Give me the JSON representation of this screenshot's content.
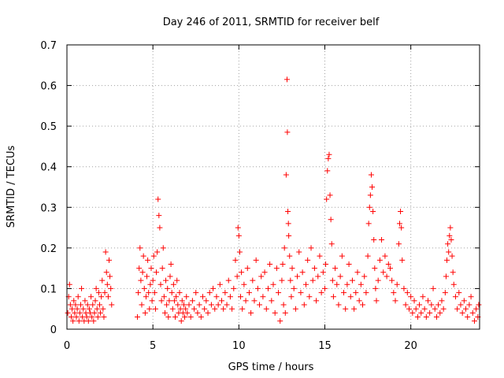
{
  "chart_data": {
    "type": "scatter",
    "title": "Day 246 of 2011, SRMTID for receiver belf",
    "xlabel": "GPS time / hours",
    "ylabel": "SRMTID / TECUs",
    "xlim": [
      0,
      24
    ],
    "ylim": [
      0,
      0.7
    ],
    "xticks": [
      0,
      5,
      10,
      15,
      20
    ],
    "xtick_labels": [
      "0",
      "5",
      "10",
      "15",
      "20"
    ],
    "yticks": [
      0,
      0.1,
      0.2,
      0.3,
      0.4,
      0.5,
      0.6,
      0.7
    ],
    "ytick_labels": [
      "0",
      "0.1",
      "0.2",
      "0.3",
      "0.4",
      "0.5",
      "0.6",
      "0.7"
    ],
    "grid": true,
    "marker": "+",
    "series": [
      {
        "name": "SRMTID",
        "color": "#ff0000",
        "points": [
          [
            0.05,
            0.04
          ],
          [
            0.1,
            0.08
          ],
          [
            0.15,
            0.11
          ],
          [
            0.2,
            0.06
          ],
          [
            0.25,
            0.03
          ],
          [
            0.3,
            0.05
          ],
          [
            0.35,
            0.02
          ],
          [
            0.4,
            0.07
          ],
          [
            0.45,
            0.04
          ],
          [
            0.5,
            0.06
          ],
          [
            0.55,
            0.03
          ],
          [
            0.6,
            0.05
          ],
          [
            0.65,
            0.08
          ],
          [
            0.7,
            0.02
          ],
          [
            0.75,
            0.04
          ],
          [
            0.8,
            0.06
          ],
          [
            0.85,
            0.1
          ],
          [
            0.9,
            0.03
          ],
          [
            0.95,
            0.05
          ],
          [
            1.0,
            0.02
          ],
          [
            1.05,
            0.07
          ],
          [
            1.1,
            0.04
          ],
          [
            1.15,
            0.03
          ],
          [
            1.2,
            0.06
          ],
          [
            1.25,
            0.02
          ],
          [
            1.3,
            0.05
          ],
          [
            1.35,
            0.04
          ],
          [
            1.4,
            0.08
          ],
          [
            1.45,
            0.03
          ],
          [
            1.5,
            0.06
          ],
          [
            1.55,
            0.02
          ],
          [
            1.6,
            0.04
          ],
          [
            1.65,
            0.07
          ],
          [
            1.7,
            0.1
          ],
          [
            1.75,
            0.05
          ],
          [
            1.8,
            0.03
          ],
          [
            1.85,
            0.09
          ],
          [
            1.9,
            0.06
          ],
          [
            1.95,
            0.04
          ],
          [
            2.0,
            0.08
          ],
          [
            2.05,
            0.12
          ],
          [
            2.1,
            0.05
          ],
          [
            2.15,
            0.03
          ],
          [
            2.2,
            0.09
          ],
          [
            2.25,
            0.19
          ],
          [
            2.3,
            0.14
          ],
          [
            2.35,
            0.11
          ],
          [
            2.4,
            0.08
          ],
          [
            2.45,
            0.17
          ],
          [
            2.5,
            0.13
          ],
          [
            2.55,
            0.1
          ],
          [
            2.6,
            0.06
          ],
          [
            4.1,
            0.03
          ],
          [
            4.15,
            0.09
          ],
          [
            4.2,
            0.15
          ],
          [
            4.25,
            0.2
          ],
          [
            4.3,
            0.12
          ],
          [
            4.35,
            0.06
          ],
          [
            4.4,
            0.14
          ],
          [
            4.45,
            0.18
          ],
          [
            4.5,
            0.1
          ],
          [
            4.55,
            0.04
          ],
          [
            4.6,
            0.08
          ],
          [
            4.65,
            0.13
          ],
          [
            4.7,
            0.17
          ],
          [
            4.75,
            0.09
          ],
          [
            4.8,
            0.05
          ],
          [
            4.85,
            0.11
          ],
          [
            4.9,
            0.15
          ],
          [
            4.95,
            0.07
          ],
          [
            5.0,
            0.12
          ],
          [
            5.05,
            0.18
          ],
          [
            5.1,
            0.09
          ],
          [
            5.15,
            0.05
          ],
          [
            5.2,
            0.14
          ],
          [
            5.25,
            0.19
          ],
          [
            5.3,
            0.32
          ],
          [
            5.35,
            0.28
          ],
          [
            5.4,
            0.25
          ],
          [
            5.45,
            0.11
          ],
          [
            5.5,
            0.07
          ],
          [
            5.55,
            0.15
          ],
          [
            5.6,
            0.2
          ],
          [
            5.65,
            0.08
          ],
          [
            5.7,
            0.04
          ],
          [
            5.75,
            0.12
          ],
          [
            5.8,
            0.06
          ],
          [
            5.85,
            0.1
          ],
          [
            5.9,
            0.03
          ],
          [
            5.95,
            0.07
          ],
          [
            6.0,
            0.13
          ],
          [
            6.05,
            0.16
          ],
          [
            6.1,
            0.09
          ],
          [
            6.15,
            0.05
          ],
          [
            6.2,
            0.11
          ],
          [
            6.25,
            0.07
          ],
          [
            6.3,
            0.03
          ],
          [
            6.35,
            0.08
          ],
          [
            6.4,
            0.12
          ],
          [
            6.45,
            0.06
          ],
          [
            6.5,
            0.04
          ],
          [
            6.55,
            0.09
          ],
          [
            6.6,
            0.05
          ],
          [
            6.65,
            0.02
          ],
          [
            6.7,
            0.07
          ],
          [
            6.75,
            0.04
          ],
          [
            6.8,
            0.06
          ],
          [
            6.85,
            0.03
          ],
          [
            6.9,
            0.05
          ],
          [
            6.95,
            0.08
          ],
          [
            7.0,
            0.04
          ],
          [
            7.1,
            0.06
          ],
          [
            7.2,
            0.03
          ],
          [
            7.3,
            0.07
          ],
          [
            7.4,
            0.05
          ],
          [
            7.5,
            0.09
          ],
          [
            7.6,
            0.04
          ],
          [
            7.7,
            0.06
          ],
          [
            7.8,
            0.03
          ],
          [
            7.9,
            0.08
          ],
          [
            8.0,
            0.05
          ],
          [
            8.1,
            0.07
          ],
          [
            8.2,
            0.04
          ],
          [
            8.3,
            0.09
          ],
          [
            8.4,
            0.06
          ],
          [
            8.5,
            0.1
          ],
          [
            8.6,
            0.05
          ],
          [
            8.7,
            0.08
          ],
          [
            8.8,
            0.06
          ],
          [
            8.9,
            0.11
          ],
          [
            9.0,
            0.07
          ],
          [
            9.1,
            0.05
          ],
          [
            9.2,
            0.09
          ],
          [
            9.3,
            0.06
          ],
          [
            9.4,
            0.12
          ],
          [
            9.5,
            0.08
          ],
          [
            9.6,
            0.05
          ],
          [
            9.7,
            0.1
          ],
          [
            9.8,
            0.17
          ],
          [
            9.9,
            0.13
          ],
          [
            9.95,
            0.25
          ],
          [
            10.0,
            0.23
          ],
          [
            10.05,
            0.19
          ],
          [
            10.1,
            0.08
          ],
          [
            10.15,
            0.14
          ],
          [
            10.2,
            0.05
          ],
          [
            10.3,
            0.11
          ],
          [
            10.4,
            0.07
          ],
          [
            10.5,
            0.15
          ],
          [
            10.6,
            0.09
          ],
          [
            10.7,
            0.04
          ],
          [
            10.8,
            0.12
          ],
          [
            10.9,
            0.07
          ],
          [
            11.0,
            0.17
          ],
          [
            11.1,
            0.1
          ],
          [
            11.2,
            0.06
          ],
          [
            11.3,
            0.13
          ],
          [
            11.4,
            0.08
          ],
          [
            11.5,
            0.14
          ],
          [
            11.6,
            0.05
          ],
          [
            11.7,
            0.1
          ],
          [
            11.8,
            0.16
          ],
          [
            11.9,
            0.07
          ],
          [
            12.0,
            0.11
          ],
          [
            12.1,
            0.04
          ],
          [
            12.2,
            0.15
          ],
          [
            12.3,
            0.09
          ],
          [
            12.4,
            0.02
          ],
          [
            12.5,
            0.12
          ],
          [
            12.55,
            0.16
          ],
          [
            12.6,
            0.06
          ],
          [
            12.65,
            0.2
          ],
          [
            12.7,
            0.04
          ],
          [
            12.75,
            0.38
          ],
          [
            12.8,
            0.615
          ],
          [
            12.82,
            0.485
          ],
          [
            12.85,
            0.29
          ],
          [
            12.88,
            0.26
          ],
          [
            12.9,
            0.23
          ],
          [
            12.95,
            0.18
          ],
          [
            13.0,
            0.12
          ],
          [
            13.05,
            0.08
          ],
          [
            13.1,
            0.15
          ],
          [
            13.2,
            0.1
          ],
          [
            13.3,
            0.05
          ],
          [
            13.4,
            0.13
          ],
          [
            13.5,
            0.19
          ],
          [
            13.6,
            0.09
          ],
          [
            13.7,
            0.14
          ],
          [
            13.8,
            0.06
          ],
          [
            13.9,
            0.11
          ],
          [
            14.0,
            0.17
          ],
          [
            14.1,
            0.08
          ],
          [
            14.2,
            0.2
          ],
          [
            14.3,
            0.12
          ],
          [
            14.4,
            0.15
          ],
          [
            14.5,
            0.07
          ],
          [
            14.6,
            0.13
          ],
          [
            14.7,
            0.18
          ],
          [
            14.8,
            0.09
          ],
          [
            14.9,
            0.14
          ],
          [
            15.0,
            0.1
          ],
          [
            15.05,
            0.16
          ],
          [
            15.1,
            0.32
          ],
          [
            15.15,
            0.39
          ],
          [
            15.2,
            0.42
          ],
          [
            15.25,
            0.43
          ],
          [
            15.3,
            0.33
          ],
          [
            15.35,
            0.27
          ],
          [
            15.4,
            0.21
          ],
          [
            15.45,
            0.12
          ],
          [
            15.5,
            0.08
          ],
          [
            15.6,
            0.15
          ],
          [
            15.7,
            0.11
          ],
          [
            15.8,
            0.06
          ],
          [
            15.9,
            0.13
          ],
          [
            16.0,
            0.18
          ],
          [
            16.1,
            0.09
          ],
          [
            16.2,
            0.05
          ],
          [
            16.3,
            0.11
          ],
          [
            16.4,
            0.16
          ],
          [
            16.5,
            0.08
          ],
          [
            16.6,
            0.12
          ],
          [
            16.7,
            0.05
          ],
          [
            16.8,
            0.09
          ],
          [
            16.9,
            0.14
          ],
          [
            17.0,
            0.07
          ],
          [
            17.1,
            0.11
          ],
          [
            17.2,
            0.06
          ],
          [
            17.3,
            0.13
          ],
          [
            17.4,
            0.09
          ],
          [
            17.5,
            0.18
          ],
          [
            17.55,
            0.26
          ],
          [
            17.6,
            0.3
          ],
          [
            17.65,
            0.33
          ],
          [
            17.7,
            0.38
          ],
          [
            17.75,
            0.35
          ],
          [
            17.8,
            0.29
          ],
          [
            17.85,
            0.22
          ],
          [
            17.9,
            0.15
          ],
          [
            17.95,
            0.1
          ],
          [
            18.0,
            0.07
          ],
          [
            18.1,
            0.12
          ],
          [
            18.2,
            0.17
          ],
          [
            18.3,
            0.22
          ],
          [
            18.4,
            0.14
          ],
          [
            18.5,
            0.18
          ],
          [
            18.6,
            0.13
          ],
          [
            18.7,
            0.16
          ],
          [
            18.8,
            0.15
          ],
          [
            18.9,
            0.12
          ],
          [
            19.0,
            0.09
          ],
          [
            19.1,
            0.07
          ],
          [
            19.2,
            0.11
          ],
          [
            19.3,
            0.21
          ],
          [
            19.35,
            0.26
          ],
          [
            19.4,
            0.29
          ],
          [
            19.45,
            0.25
          ],
          [
            19.5,
            0.17
          ],
          [
            19.6,
            0.1
          ],
          [
            19.7,
            0.06
          ],
          [
            19.8,
            0.09
          ],
          [
            19.9,
            0.05
          ],
          [
            20.0,
            0.08
          ],
          [
            20.1,
            0.04
          ],
          [
            20.2,
            0.07
          ],
          [
            20.3,
            0.05
          ],
          [
            20.4,
            0.03
          ],
          [
            20.5,
            0.06
          ],
          [
            20.6,
            0.04
          ],
          [
            20.7,
            0.08
          ],
          [
            20.8,
            0.05
          ],
          [
            20.9,
            0.03
          ],
          [
            21.0,
            0.07
          ],
          [
            21.1,
            0.04
          ],
          [
            21.2,
            0.06
          ],
          [
            21.3,
            0.1
          ],
          [
            21.4,
            0.05
          ],
          [
            21.5,
            0.03
          ],
          [
            21.6,
            0.06
          ],
          [
            21.7,
            0.04
          ],
          [
            21.8,
            0.07
          ],
          [
            21.9,
            0.05
          ],
          [
            22.0,
            0.09
          ],
          [
            22.05,
            0.13
          ],
          [
            22.1,
            0.17
          ],
          [
            22.15,
            0.21
          ],
          [
            22.2,
            0.19
          ],
          [
            22.25,
            0.23
          ],
          [
            22.3,
            0.25
          ],
          [
            22.35,
            0.22
          ],
          [
            22.4,
            0.18
          ],
          [
            22.45,
            0.14
          ],
          [
            22.5,
            0.11
          ],
          [
            22.6,
            0.08
          ],
          [
            22.7,
            0.05
          ],
          [
            22.8,
            0.09
          ],
          [
            22.9,
            0.06
          ],
          [
            23.0,
            0.04
          ],
          [
            23.1,
            0.07
          ],
          [
            23.2,
            0.05
          ],
          [
            23.3,
            0.03
          ],
          [
            23.4,
            0.06
          ],
          [
            23.5,
            0.08
          ],
          [
            23.6,
            0.04
          ],
          [
            23.7,
            0.02
          ],
          [
            23.8,
            0.05
          ],
          [
            23.9,
            0.03
          ],
          [
            23.95,
            0.06
          ]
        ]
      }
    ]
  }
}
